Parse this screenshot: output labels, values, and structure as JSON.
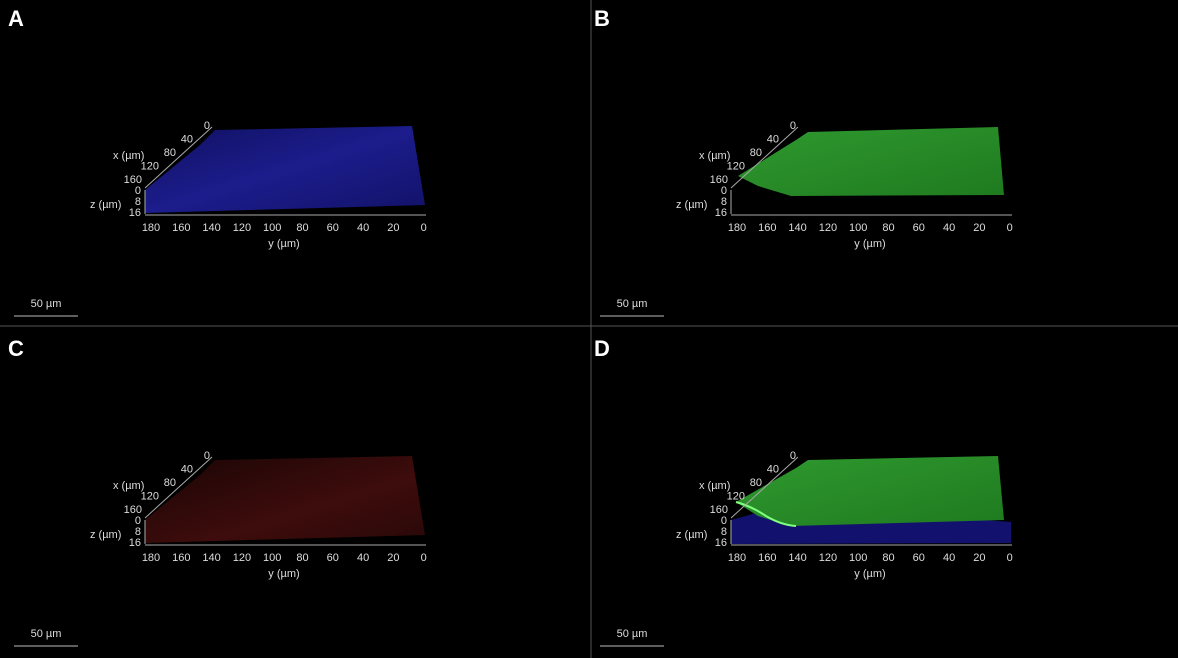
{
  "panels": [
    {
      "label": "A",
      "scale_bar": "50 µm"
    },
    {
      "label": "B",
      "scale_bar": "50 µm"
    },
    {
      "label": "C",
      "scale_bar": "50 µm"
    },
    {
      "label": "D",
      "scale_bar": "50 µm"
    }
  ],
  "axes": {
    "x_title": "x (µm)",
    "x_ticks": [
      "0",
      "40",
      "80",
      "120",
      "160"
    ],
    "z_title": "z (µm)",
    "z_ticks": [
      "0",
      "8",
      "16"
    ],
    "y_title": "y (µm)",
    "y_ticks": [
      "180",
      "160",
      "140",
      "120",
      "100",
      "80",
      "60",
      "40",
      "20",
      "0"
    ]
  }
}
